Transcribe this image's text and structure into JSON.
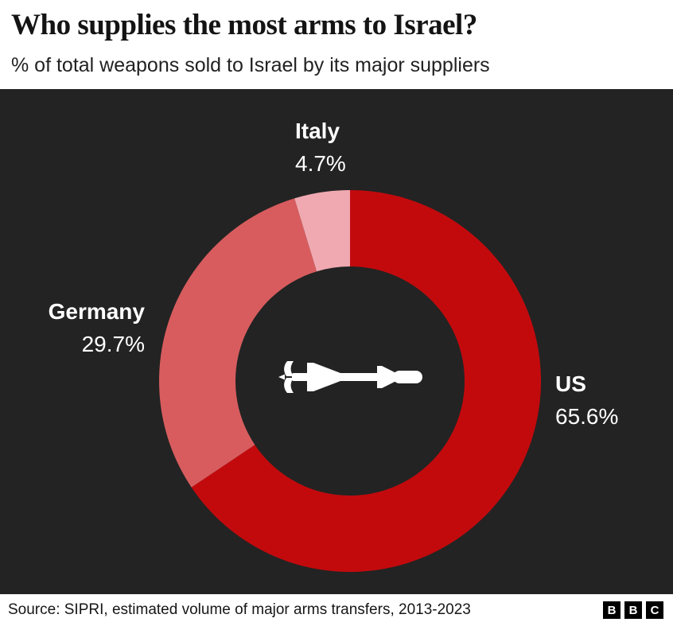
{
  "header": {
    "title": "Who supplies the most arms to Israel?",
    "subtitle": "% of total weapons sold to Israel by its major suppliers"
  },
  "chart_data": {
    "type": "pie",
    "variant": "donut",
    "title": "Who supplies the most arms to Israel?",
    "subtitle": "% of total weapons sold to Israel by its major suppliers",
    "categories": [
      "US",
      "Germany",
      "Italy"
    ],
    "values": [
      65.6,
      29.7,
      4.7
    ],
    "slices": [
      {
        "label": "US",
        "value": 65.6,
        "display": "65.6%",
        "color": "#c20a0d"
      },
      {
        "label": "Germany",
        "value": 29.7,
        "display": "29.7%",
        "color": "#d85c5e"
      },
      {
        "label": "Italy",
        "value": 4.7,
        "display": "4.7%",
        "color": "#f0a9b1"
      }
    ],
    "start_angle_deg": 0,
    "direction": "clockwise",
    "inner_radius_ratio": 0.6,
    "background": "#232323",
    "label_color": "#ffffff",
    "center_icon": "missile-icon",
    "center_icon_color": "#ffffff",
    "legend_position": "around-ring",
    "grid": false
  },
  "footer": {
    "source": "Source: SIPRI, estimated volume of major arms transfers, 2013-2023",
    "logo_letters": [
      "B",
      "B",
      "C"
    ]
  }
}
